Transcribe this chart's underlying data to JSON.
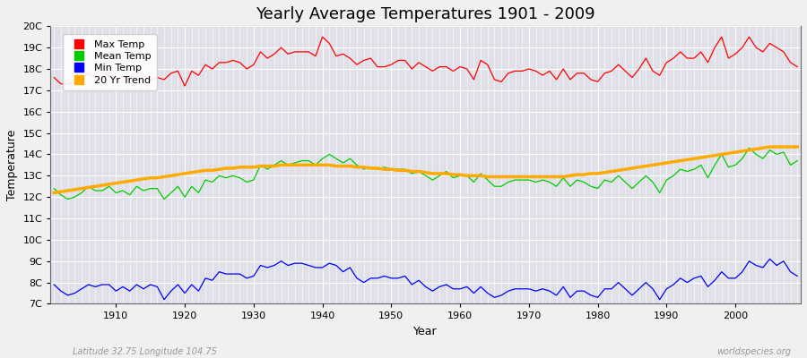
{
  "title": "Yearly Average Temperatures 1901 - 2009",
  "xlabel": "Year",
  "ylabel": "Temperature",
  "bottom_left": "Latitude 32.75 Longitude 104.75",
  "bottom_right": "worldspecies.org",
  "legend_labels": [
    "Max Temp",
    "Mean Temp",
    "Min Temp",
    "20 Yr Trend"
  ],
  "legend_colors": [
    "#ff0000",
    "#00cc00",
    "#0000ff",
    "#ffaa00"
  ],
  "bg_color": "#f0f0f0",
  "plot_bg_color": "#e0e0e8",
  "grid_color": "#ffffff",
  "ylim_min": 7,
  "ylim_max": 20,
  "yticks": [
    7,
    8,
    9,
    10,
    11,
    12,
    13,
    14,
    15,
    16,
    17,
    18,
    19,
    20
  ],
  "ytick_labels": [
    "7C",
    "8C",
    "9C",
    "10C",
    "11C",
    "12C",
    "13C",
    "14C",
    "15C",
    "16C",
    "17C",
    "18C",
    "19C",
    "20C"
  ],
  "years": [
    1901,
    1902,
    1903,
    1904,
    1905,
    1906,
    1907,
    1908,
    1909,
    1910,
    1911,
    1912,
    1913,
    1914,
    1915,
    1916,
    1917,
    1918,
    1919,
    1920,
    1921,
    1922,
    1923,
    1924,
    1925,
    1926,
    1927,
    1928,
    1929,
    1930,
    1931,
    1932,
    1933,
    1934,
    1935,
    1936,
    1937,
    1938,
    1939,
    1940,
    1941,
    1942,
    1943,
    1944,
    1945,
    1946,
    1947,
    1948,
    1949,
    1950,
    1951,
    1952,
    1953,
    1954,
    1955,
    1956,
    1957,
    1958,
    1959,
    1960,
    1961,
    1962,
    1963,
    1964,
    1965,
    1966,
    1967,
    1968,
    1969,
    1970,
    1971,
    1972,
    1973,
    1974,
    1975,
    1976,
    1977,
    1978,
    1979,
    1980,
    1981,
    1982,
    1983,
    1984,
    1985,
    1986,
    1987,
    1988,
    1989,
    1990,
    1991,
    1992,
    1993,
    1994,
    1995,
    1996,
    1997,
    1998,
    1999,
    2000,
    2001,
    2002,
    2003,
    2004,
    2005,
    2006,
    2007,
    2008,
    2009
  ],
  "max_temp": [
    17.6,
    17.3,
    17.3,
    17.4,
    17.6,
    17.8,
    17.6,
    17.5,
    17.8,
    17.5,
    17.6,
    17.6,
    17.9,
    17.7,
    17.5,
    17.6,
    17.5,
    17.8,
    17.9,
    17.2,
    17.9,
    17.7,
    18.2,
    18.0,
    18.3,
    18.3,
    18.4,
    18.3,
    18.0,
    18.2,
    18.8,
    18.5,
    18.7,
    19.0,
    18.7,
    18.8,
    18.8,
    18.8,
    18.6,
    19.5,
    19.2,
    18.6,
    18.7,
    18.5,
    18.2,
    18.4,
    18.5,
    18.1,
    18.1,
    18.2,
    18.4,
    18.4,
    18.0,
    18.3,
    18.1,
    17.9,
    18.1,
    18.1,
    17.9,
    18.1,
    18.0,
    17.5,
    18.4,
    18.2,
    17.5,
    17.4,
    17.8,
    17.9,
    17.9,
    18.0,
    17.9,
    17.7,
    17.9,
    17.5,
    18.0,
    17.5,
    17.8,
    17.8,
    17.5,
    17.4,
    17.8,
    17.9,
    18.2,
    17.9,
    17.6,
    18.0,
    18.5,
    17.9,
    17.7,
    18.3,
    18.5,
    18.8,
    18.5,
    18.5,
    18.8,
    18.3,
    19.0,
    19.5,
    18.5,
    18.7,
    19.0,
    19.5,
    19.0,
    18.8,
    19.2,
    19.0,
    18.8,
    18.3,
    18.1
  ],
  "mean_temp": [
    12.4,
    12.1,
    11.9,
    12.0,
    12.2,
    12.5,
    12.3,
    12.3,
    12.5,
    12.2,
    12.3,
    12.1,
    12.5,
    12.3,
    12.4,
    12.4,
    11.9,
    12.2,
    12.5,
    12.0,
    12.5,
    12.2,
    12.8,
    12.7,
    13.0,
    12.9,
    13.0,
    12.9,
    12.7,
    12.8,
    13.5,
    13.3,
    13.5,
    13.7,
    13.5,
    13.6,
    13.7,
    13.7,
    13.5,
    13.8,
    14.0,
    13.8,
    13.6,
    13.8,
    13.5,
    13.3,
    13.4,
    13.3,
    13.4,
    13.3,
    13.3,
    13.3,
    13.1,
    13.2,
    13.0,
    12.8,
    13.0,
    13.2,
    12.9,
    13.0,
    13.0,
    12.7,
    13.1,
    12.8,
    12.5,
    12.5,
    12.7,
    12.8,
    12.8,
    12.8,
    12.7,
    12.8,
    12.7,
    12.5,
    12.9,
    12.5,
    12.8,
    12.7,
    12.5,
    12.4,
    12.8,
    12.7,
    13.0,
    12.7,
    12.4,
    12.7,
    13.0,
    12.7,
    12.2,
    12.8,
    13.0,
    13.3,
    13.2,
    13.3,
    13.5,
    12.9,
    13.5,
    14.0,
    13.4,
    13.5,
    13.8,
    14.3,
    14.0,
    13.8,
    14.2,
    14.0,
    14.1,
    13.5,
    13.7
  ],
  "min_temp": [
    7.9,
    7.6,
    7.4,
    7.5,
    7.7,
    7.9,
    7.8,
    7.9,
    7.9,
    7.6,
    7.8,
    7.6,
    7.9,
    7.7,
    7.9,
    7.8,
    7.2,
    7.6,
    7.9,
    7.5,
    7.9,
    7.6,
    8.2,
    8.1,
    8.5,
    8.4,
    8.4,
    8.4,
    8.2,
    8.3,
    8.8,
    8.7,
    8.8,
    9.0,
    8.8,
    8.9,
    8.9,
    8.8,
    8.7,
    8.7,
    8.9,
    8.8,
    8.5,
    8.7,
    8.2,
    8.0,
    8.2,
    8.2,
    8.3,
    8.2,
    8.2,
    8.3,
    7.9,
    8.1,
    7.8,
    7.6,
    7.8,
    7.9,
    7.7,
    7.7,
    7.8,
    7.5,
    7.8,
    7.5,
    7.3,
    7.4,
    7.6,
    7.7,
    7.7,
    7.7,
    7.6,
    7.7,
    7.6,
    7.4,
    7.8,
    7.3,
    7.6,
    7.6,
    7.4,
    7.3,
    7.7,
    7.7,
    8.0,
    7.7,
    7.4,
    7.7,
    8.0,
    7.7,
    7.2,
    7.7,
    7.9,
    8.2,
    8.0,
    8.2,
    8.3,
    7.8,
    8.1,
    8.5,
    8.2,
    8.2,
    8.5,
    9.0,
    8.8,
    8.7,
    9.1,
    8.8,
    9.0,
    8.5,
    8.3
  ],
  "trend": [
    12.2,
    12.25,
    12.3,
    12.35,
    12.4,
    12.45,
    12.5,
    12.55,
    12.6,
    12.65,
    12.7,
    12.75,
    12.8,
    12.85,
    12.9,
    12.9,
    12.95,
    13.0,
    13.05,
    13.1,
    13.15,
    13.2,
    13.25,
    13.25,
    13.3,
    13.35,
    13.35,
    13.4,
    13.4,
    13.4,
    13.45,
    13.45,
    13.45,
    13.5,
    13.5,
    13.5,
    13.5,
    13.5,
    13.5,
    13.5,
    13.5,
    13.45,
    13.45,
    13.45,
    13.4,
    13.4,
    13.35,
    13.35,
    13.3,
    13.3,
    13.25,
    13.25,
    13.2,
    13.2,
    13.15,
    13.1,
    13.1,
    13.1,
    13.05,
    13.05,
    13.0,
    13.0,
    13.0,
    12.95,
    12.95,
    12.95,
    12.95,
    12.95,
    12.95,
    12.95,
    12.95,
    12.95,
    12.95,
    12.95,
    12.95,
    13.0,
    13.05,
    13.05,
    13.1,
    13.1,
    13.15,
    13.2,
    13.25,
    13.3,
    13.35,
    13.4,
    13.45,
    13.5,
    13.55,
    13.6,
    13.65,
    13.7,
    13.75,
    13.8,
    13.85,
    13.9,
    13.95,
    14.0,
    14.05,
    14.1,
    14.15,
    14.2,
    14.25,
    14.3,
    14.35,
    14.35,
    14.35,
    14.35,
    14.35
  ]
}
